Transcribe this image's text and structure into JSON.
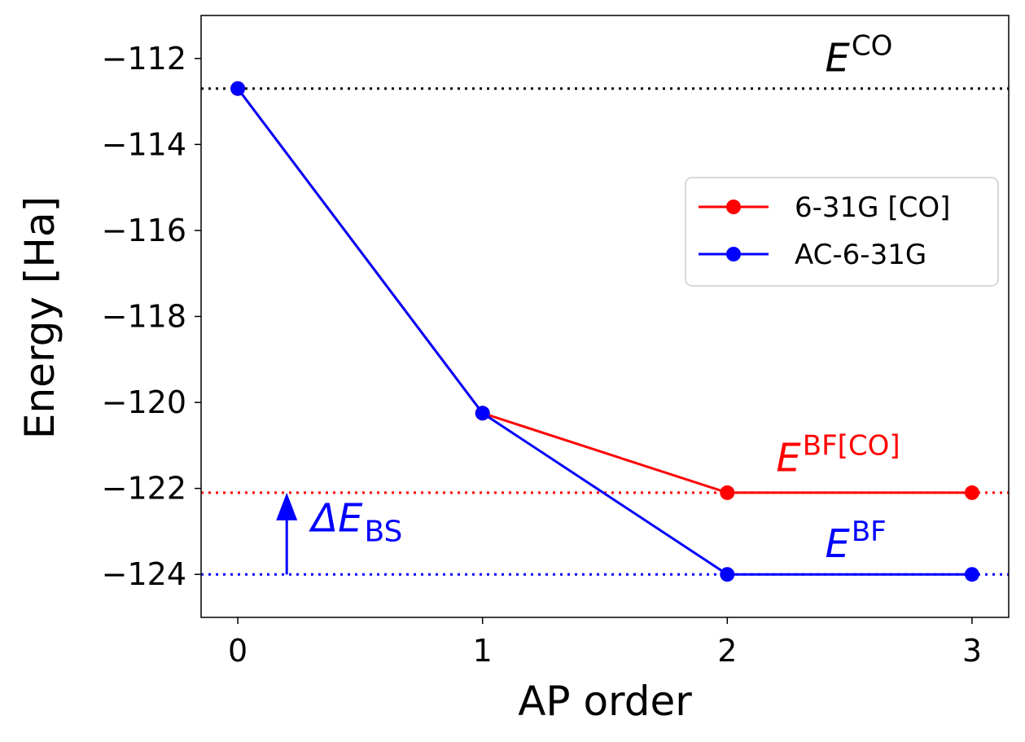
{
  "chart_data": {
    "type": "line",
    "xlabel": "AP order",
    "ylabel": "Energy [Ha]",
    "x": [
      0,
      1,
      2,
      3
    ],
    "xticks": [
      "0",
      "1",
      "2",
      "3"
    ],
    "yticks": [
      "−124",
      "−122",
      "−120",
      "−118",
      "−116",
      "−114",
      "−112"
    ],
    "xlim": [
      -0.15,
      3.15
    ],
    "ylim": [
      -125.0,
      -111.0
    ],
    "grid": false,
    "legend_position": "center-right",
    "series": [
      {
        "name": "6-31G [CO]",
        "color": "#ff0000",
        "values": [
          -112.7,
          -120.25,
          -122.1,
          -122.1
        ]
      },
      {
        "name": "AC-6-31G",
        "color": "#0000ff",
        "values": [
          -112.7,
          -120.25,
          -124.0,
          -124.0
        ]
      }
    ],
    "reference_lines": [
      {
        "y": -112.7,
        "color": "#000000"
      },
      {
        "y": -122.1,
        "color": "#ff0000"
      },
      {
        "y": -124.0,
        "color": "#0000ff"
      }
    ],
    "annotations": [
      {
        "base": "E",
        "sup": "CO",
        "color": "#000000",
        "x": 2.4,
        "y": -112.3
      },
      {
        "base": "E",
        "sup": "BF[CO]",
        "color": "#ff0000",
        "x": 2.2,
        "y": -121.6
      },
      {
        "base": "E",
        "sup": "BF",
        "color": "#0000ff",
        "x": 2.4,
        "y": -123.6
      },
      {
        "base": "ΔE",
        "sub": "BS",
        "color": "#0000ff",
        "x": 0.3,
        "y": -123.0
      }
    ],
    "arrow": {
      "x": 0.2,
      "y_from": -124.0,
      "y_to": -122.1,
      "color": "#0000ff"
    }
  }
}
